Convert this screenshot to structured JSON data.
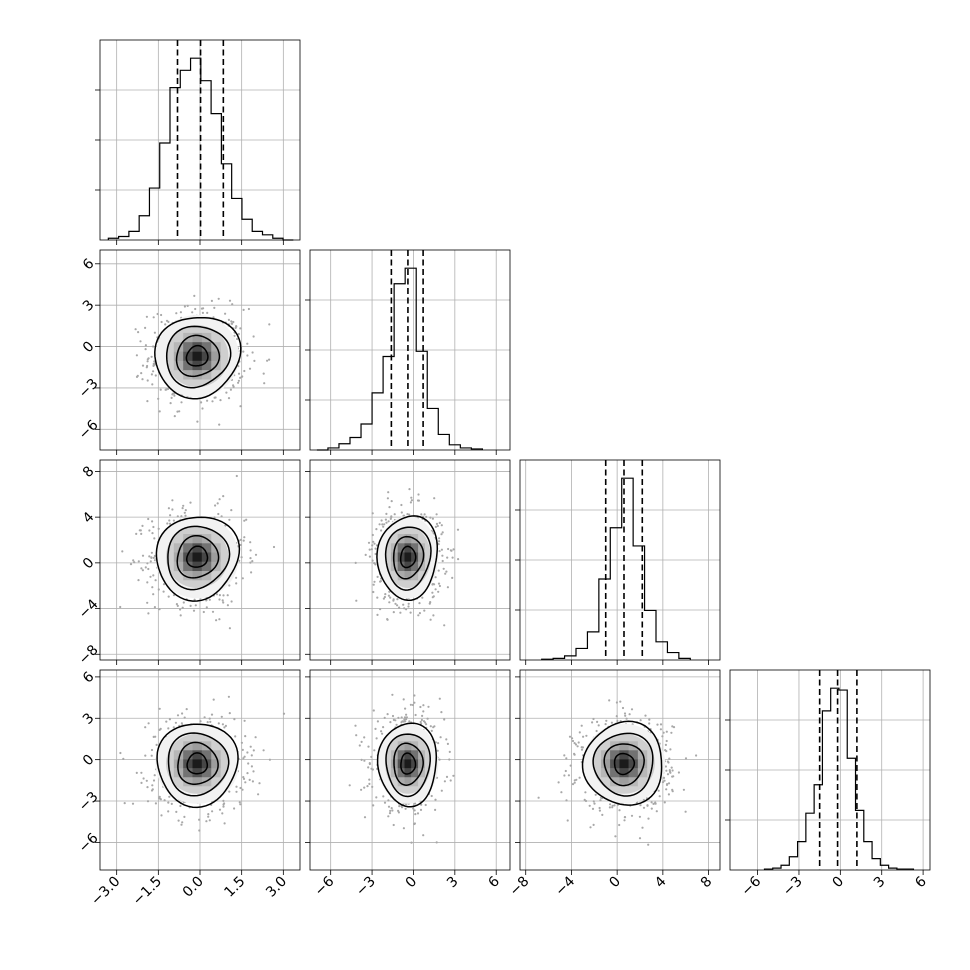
{
  "chart_data": {
    "type": "corner",
    "title": "",
    "grid": true,
    "quantile_lines": [
      0.16,
      0.5,
      0.84
    ],
    "parameters": [
      {
        "index": 0,
        "range": [
          -3.6,
          3.6
        ],
        "tick_values": [
          -3.0,
          -1.5,
          0.0,
          1.5,
          3.0
        ],
        "tick_labels": [
          "−3.0",
          "−1.5",
          "0.0",
          "1.5",
          "3.0"
        ],
        "quantiles": [
          -0.81,
          0.02,
          0.84
        ],
        "histogram": {
          "bin_edges": [
            -3.3,
            -2.93,
            -2.56,
            -2.19,
            -1.82,
            -1.45,
            -1.08,
            -0.71,
            -0.34,
            0.03,
            0.4,
            0.77,
            1.14,
            1.51,
            1.88,
            2.25,
            2.62,
            2.99,
            3.36
          ],
          "counts": [
            1,
            2,
            5,
            14,
            30,
            56,
            88,
            98,
            105,
            92,
            73,
            44,
            24,
            12,
            5,
            3,
            1,
            0
          ]
        }
      },
      {
        "index": 1,
        "range": [
          -7.5,
          7.0
        ],
        "tick_values": [
          -6,
          -3,
          0,
          3,
          6
        ],
        "tick_labels": [
          "−6",
          "−3",
          "0",
          "3",
          "6"
        ],
        "quantiles": [
          -1.6,
          -0.4,
          0.7
        ],
        "histogram": {
          "bin_edges": [
            -7.0,
            -6.2,
            -5.4,
            -4.6,
            -3.8,
            -3.0,
            -2.2,
            -1.4,
            -0.6,
            0.2,
            1.0,
            1.8,
            2.6,
            3.4,
            4.2,
            5.0
          ],
          "counts": [
            0,
            2,
            6,
            12,
            25,
            55,
            90,
            160,
            175,
            95,
            40,
            15,
            5,
            2,
            1
          ]
        }
      },
      {
        "index": 2,
        "range": [
          -8.5,
          9.0
        ],
        "tick_values": [
          -8,
          -4,
          0,
          4,
          8
        ],
        "tick_labels": [
          "−8",
          "−4",
          "0",
          "4",
          "8"
        ],
        "quantiles": [
          -1.0,
          0.6,
          2.2
        ],
        "histogram": {
          "bin_edges": [
            -6.6,
            -5.6,
            -4.6,
            -3.6,
            -2.6,
            -1.6,
            -0.6,
            0.4,
            1.4,
            2.4,
            3.4,
            4.4,
            5.4,
            6.4
          ],
          "counts": [
            1,
            2,
            5,
            14,
            34,
            98,
            160,
            220,
            138,
            60,
            22,
            9,
            2
          ]
        }
      },
      {
        "index": 3,
        "range": [
          -8.0,
          6.5
        ],
        "tick_values": [
          -6,
          -3,
          0,
          3,
          6
        ],
        "tick_labels": [
          "−6",
          "−3",
          "0",
          "3",
          "6"
        ],
        "quantiles": [
          -1.5,
          -0.2,
          1.2
        ],
        "histogram": {
          "bin_edges": [
            -5.5,
            -4.9,
            -4.3,
            -3.7,
            -3.1,
            -2.5,
            -1.9,
            -1.3,
            -0.7,
            -0.1,
            0.5,
            1.1,
            1.7,
            2.3,
            2.9,
            3.5,
            4.1,
            4.7,
            5.3
          ],
          "counts": [
            1,
            2,
            5,
            14,
            30,
            60,
            90,
            168,
            192,
            190,
            118,
            63,
            30,
            12,
            5,
            2,
            1,
            1
          ]
        }
      }
    ],
    "pair_panels": [
      {
        "x_param": 0,
        "y_param": 1,
        "center": [
          -0.1,
          -0.7
        ],
        "sigma": [
          0.75,
          1.5
        ],
        "contour_levels": [
          0.5,
          1.0,
          1.5,
          2.0
        ]
      },
      {
        "x_param": 0,
        "y_param": 2,
        "center": [
          -0.1,
          0.5
        ],
        "sigma": [
          0.75,
          1.8
        ],
        "contour_levels": [
          0.5,
          1.0,
          1.5,
          2.0
        ]
      },
      {
        "x_param": 1,
        "y_param": 2,
        "center": [
          -0.4,
          0.5
        ],
        "sigma": [
          1.1,
          1.8
        ],
        "contour_levels": [
          0.5,
          1.0,
          1.5,
          2.0
        ]
      },
      {
        "x_param": 0,
        "y_param": 3,
        "center": [
          -0.1,
          -0.3
        ],
        "sigma": [
          0.75,
          1.45
        ],
        "contour_levels": [
          0.5,
          1.0,
          1.5,
          2.0
        ]
      },
      {
        "x_param": 1,
        "y_param": 3,
        "center": [
          -0.4,
          -0.3
        ],
        "sigma": [
          1.1,
          1.45
        ],
        "contour_levels": [
          0.5,
          1.0,
          1.5,
          2.0
        ]
      },
      {
        "x_param": 2,
        "y_param": 3,
        "center": [
          0.6,
          -0.3
        ],
        "sigma": [
          1.8,
          1.45
        ],
        "contour_levels": [
          0.5,
          1.0,
          1.5,
          2.0
        ]
      }
    ],
    "colors": {
      "line": "#000000",
      "grid": "#b0b0b0",
      "scatter": "#a8a8a8"
    }
  }
}
